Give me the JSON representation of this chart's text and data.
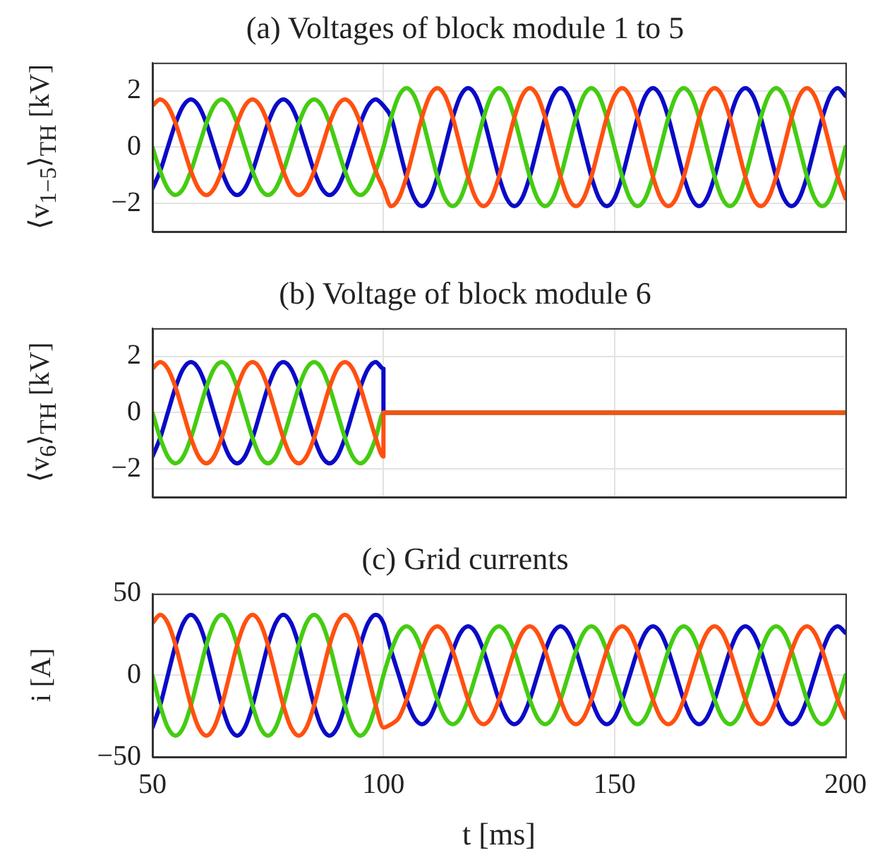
{
  "chart_data": [
    {
      "type": "line",
      "title": "(a) Voltages of block module 1 to 5",
      "ylabel": "⟨v$_{1−5}$⟩$_{TH}$ [kV]",
      "xlim": [
        50,
        200
      ],
      "xticks": [
        50,
        100,
        150,
        200
      ],
      "ylim": [
        -3,
        3
      ],
      "yticks": [
        -2,
        0,
        2
      ],
      "grid": true,
      "legend": false,
      "marker": "none",
      "tick_labels": "y",
      "x": [
        50,
        51.67,
        53.33,
        55,
        56.67,
        58.33,
        60,
        61.67,
        63.33,
        65,
        66.67,
        68.33,
        70,
        71.67,
        73.33,
        75,
        76.67,
        78.33,
        80,
        81.67,
        83.33,
        85,
        86.67,
        88.33,
        90,
        91.67,
        93.33,
        95,
        96.67,
        98.33,
        100,
        101.67,
        103.33,
        105,
        106.67,
        108.33,
        110,
        111.67,
        113.33,
        115,
        116.67,
        118.33,
        120,
        121.67,
        123.33,
        125,
        126.67,
        128.33,
        130,
        131.67,
        133.33,
        135,
        136.67,
        138.33,
        140,
        141.67,
        143.33,
        145,
        146.67,
        148.33,
        150,
        151.67,
        153.33,
        155,
        156.67,
        158.33,
        160,
        161.67,
        163.33,
        165,
        166.67,
        168.33,
        170,
        171.67,
        173.33,
        175,
        176.67,
        178.33,
        180,
        181.67,
        183.33,
        185,
        186.67,
        188.33,
        190,
        191.67,
        193.33,
        195,
        196.67,
        198.33,
        200
      ],
      "series": [
        {
          "color": "#0a0ac8",
          "values": [
            -1.47,
            -0.85,
            0,
            0.85,
            1.47,
            1.7,
            1.47,
            0.85,
            0,
            -0.85,
            -1.47,
            -1.7,
            -1.47,
            -0.85,
            0,
            0.85,
            1.47,
            1.7,
            1.47,
            0.85,
            0,
            -0.85,
            -1.47,
            -1.7,
            -1.47,
            -0.85,
            0,
            0.85,
            1.47,
            1.7,
            1.47,
            1.05,
            0,
            -1.05,
            -1.82,
            -2.1,
            -1.82,
            -1.05,
            0,
            1.05,
            1.82,
            2.1,
            1.82,
            1.05,
            0,
            -1.05,
            -1.82,
            -2.1,
            -1.82,
            -1.05,
            0,
            1.05,
            1.82,
            2.1,
            1.82,
            1.05,
            0,
            -1.05,
            -1.82,
            -2.1,
            -1.82,
            -1.05,
            0,
            1.05,
            1.82,
            2.1,
            1.82,
            1.05,
            0,
            -1.05,
            -1.82,
            -2.1,
            -1.82,
            -1.05,
            0,
            1.05,
            1.82,
            2.1,
            1.82,
            1.05,
            0,
            -1.05,
            -1.82,
            -2.1,
            -1.82,
            -1.05,
            0,
            1.05,
            1.82,
            2.1,
            1.82
          ]
        },
        {
          "color": "#44cc11",
          "values": [
            0,
            -0.85,
            -1.47,
            -1.7,
            -1.47,
            -0.85,
            0,
            0.85,
            1.47,
            1.7,
            1.47,
            0.85,
            0,
            -0.85,
            -1.47,
            -1.7,
            -1.47,
            -0.85,
            0,
            0.85,
            1.47,
            1.7,
            1.47,
            0.85,
            0,
            -0.85,
            -1.47,
            -1.7,
            -1.47,
            -0.85,
            0,
            1.05,
            1.82,
            2.1,
            1.82,
            1.05,
            0,
            -1.05,
            -1.82,
            -2.1,
            -1.82,
            -1.05,
            0,
            1.05,
            1.82,
            2.1,
            1.82,
            1.05,
            0,
            -1.05,
            -1.82,
            -2.1,
            -1.82,
            -1.05,
            0,
            1.05,
            1.82,
            2.1,
            1.82,
            1.05,
            0,
            -1.05,
            -1.82,
            -2.1,
            -1.82,
            -1.05,
            0,
            1.05,
            1.82,
            2.1,
            1.82,
            1.05,
            0,
            -1.05,
            -1.82,
            -2.1,
            -1.82,
            -1.05,
            0,
            1.05,
            1.82,
            2.1,
            1.82,
            1.05,
            0,
            -1.05,
            -1.82,
            -2.1,
            -1.82,
            -1.05,
            0
          ]
        },
        {
          "color": "#ff5010",
          "values": [
            1.47,
            1.7,
            1.47,
            0.85,
            0,
            -0.85,
            -1.47,
            -1.7,
            -1.47,
            -0.85,
            0,
            0.85,
            1.47,
            1.7,
            1.47,
            0.85,
            0,
            -0.85,
            -1.47,
            -1.7,
            -1.47,
            -0.85,
            0,
            0.85,
            1.47,
            1.7,
            1.47,
            0.85,
            0,
            -0.85,
            -1.47,
            -2.1,
            -1.82,
            -1.05,
            0,
            1.05,
            1.82,
            2.1,
            1.82,
            1.05,
            0,
            -1.05,
            -1.82,
            -2.1,
            -1.82,
            -1.05,
            0,
            1.05,
            1.82,
            2.1,
            1.82,
            1.05,
            0,
            -1.05,
            -1.82,
            -2.1,
            -1.82,
            -1.05,
            0,
            1.05,
            1.82,
            2.1,
            1.82,
            1.05,
            0,
            -1.05,
            -1.82,
            -2.1,
            -1.82,
            -1.05,
            0,
            1.05,
            1.82,
            2.1,
            1.82,
            1.05,
            0,
            -1.05,
            -1.82,
            -2.1,
            -1.82,
            -1.05,
            0,
            1.05,
            1.82,
            2.1,
            1.82,
            1.05,
            0,
            -1.05,
            -1.82
          ]
        }
      ]
    },
    {
      "type": "line",
      "title": "(b) Voltage of block module 6",
      "ylabel": "⟨v$_{6}$⟩$_{TH}$ [kV]",
      "xlim": [
        50,
        200
      ],
      "xticks": [
        50,
        100,
        150,
        200
      ],
      "ylim": [
        -3,
        3
      ],
      "yticks": [
        -2,
        0,
        2
      ],
      "grid": true,
      "legend": false,
      "marker": "none",
      "tick_labels": "y",
      "x": [
        50,
        51.67,
        53.33,
        55,
        56.67,
        58.33,
        60,
        61.67,
        63.33,
        65,
        66.67,
        68.33,
        70,
        71.67,
        73.33,
        75,
        76.67,
        78.33,
        80,
        81.67,
        83.33,
        85,
        86.67,
        88.33,
        90,
        91.67,
        93.33,
        95,
        96.67,
        98.33,
        100,
        100,
        200
      ],
      "series": [
        {
          "color": "#0a0ac8",
          "values": [
            -1.56,
            -0.9,
            0,
            0.9,
            1.56,
            1.8,
            1.56,
            0.9,
            0,
            -0.9,
            -1.56,
            -1.8,
            -1.56,
            -0.9,
            0,
            0.9,
            1.56,
            1.8,
            1.56,
            0.9,
            0,
            -0.9,
            -1.56,
            -1.8,
            -1.56,
            -0.9,
            0,
            0.9,
            1.56,
            1.8,
            1.56,
            0,
            0
          ]
        },
        {
          "color": "#44cc11",
          "values": [
            0,
            -0.9,
            -1.56,
            -1.8,
            -1.56,
            -0.9,
            0,
            0.9,
            1.56,
            1.8,
            1.56,
            0.9,
            0,
            -0.9,
            -1.56,
            -1.8,
            -1.56,
            -0.9,
            0,
            0.9,
            1.56,
            1.8,
            1.56,
            0.9,
            0,
            -0.9,
            -1.56,
            -1.8,
            -1.56,
            -0.9,
            0,
            0,
            0
          ]
        },
        {
          "color": "#ff5010",
          "values": [
            1.56,
            1.8,
            1.56,
            0.9,
            0,
            -0.9,
            -1.56,
            -1.8,
            -1.56,
            -0.9,
            0,
            0.9,
            1.56,
            1.8,
            1.56,
            0.9,
            0,
            -0.9,
            -1.56,
            -1.8,
            -1.56,
            -0.9,
            0,
            0.9,
            1.56,
            1.8,
            1.56,
            0.9,
            0,
            -0.9,
            -1.56,
            0,
            0
          ]
        }
      ]
    },
    {
      "type": "line",
      "title": "(c) Grid currents",
      "xlabel": "t [ms]",
      "ylabel": "i [A]",
      "xlim": [
        50,
        200
      ],
      "xticks": [
        50,
        100,
        150,
        200
      ],
      "ylim": [
        -50,
        50
      ],
      "yticks": [
        -50,
        0,
        50
      ],
      "grid": true,
      "legend": false,
      "marker": "none",
      "x": [
        50,
        51.67,
        53.33,
        55,
        56.67,
        58.33,
        60,
        61.67,
        63.33,
        65,
        66.67,
        68.33,
        70,
        71.67,
        73.33,
        75,
        76.67,
        78.33,
        80,
        81.67,
        83.33,
        85,
        86.67,
        88.33,
        90,
        91.67,
        93.33,
        95,
        96.67,
        98.33,
        100,
        101.67,
        103.33,
        105,
        106.67,
        108.33,
        110,
        111.67,
        113.33,
        115,
        116.67,
        118.33,
        120,
        121.67,
        123.33,
        125,
        126.67,
        128.33,
        130,
        131.67,
        133.33,
        135,
        136.67,
        138.33,
        140,
        141.67,
        143.33,
        145,
        146.67,
        148.33,
        150,
        151.67,
        153.33,
        155,
        156.67,
        158.33,
        160,
        161.67,
        163.33,
        165,
        166.67,
        168.33,
        170,
        171.67,
        173.33,
        175,
        176.67,
        178.33,
        180,
        181.67,
        183.33,
        185,
        186.67,
        188.33,
        190,
        191.67,
        193.33,
        195,
        196.67,
        198.33,
        200
      ],
      "series": [
        {
          "color": "#0a0ac8",
          "values": [
            -32,
            -18.5,
            0,
            18.5,
            32,
            37,
            32,
            18.5,
            0,
            -18.5,
            -32,
            -37,
            -32,
            -18.5,
            0,
            18.5,
            32,
            37,
            32,
            18.5,
            0,
            -18.5,
            -32,
            -37,
            -32,
            -18.5,
            0,
            18.5,
            32,
            37,
            32,
            15,
            0,
            -15,
            -26,
            -30,
            -26,
            -15,
            0,
            15,
            26,
            30,
            26,
            15,
            0,
            -15,
            -26,
            -30,
            -26,
            -15,
            0,
            15,
            26,
            30,
            26,
            15,
            0,
            -15,
            -26,
            -30,
            -26,
            -15,
            0,
            15,
            26,
            30,
            26,
            15,
            0,
            -15,
            -26,
            -30,
            -26,
            -15,
            0,
            15,
            26,
            30,
            26,
            15,
            0,
            -15,
            -26,
            -30,
            -26,
            -15,
            0,
            15,
            26,
            30,
            26
          ]
        },
        {
          "color": "#44cc11",
          "values": [
            0,
            -18.5,
            -32,
            -37,
            -32,
            -18.5,
            0,
            18.5,
            32,
            37,
            32,
            18.5,
            0,
            -18.5,
            -32,
            -37,
            -32,
            -18.5,
            0,
            18.5,
            32,
            37,
            32,
            18.5,
            0,
            -18.5,
            -32,
            -37,
            -32,
            -18.5,
            0,
            15,
            26,
            30,
            26,
            15,
            0,
            -15,
            -26,
            -30,
            -26,
            -15,
            0,
            15,
            26,
            30,
            26,
            15,
            0,
            -15,
            -26,
            -30,
            -26,
            -15,
            0,
            15,
            26,
            30,
            26,
            15,
            0,
            -15,
            -26,
            -30,
            -26,
            -15,
            0,
            15,
            26,
            30,
            26,
            15,
            0,
            -15,
            -26,
            -30,
            -26,
            -15,
            0,
            15,
            26,
            30,
            26,
            15,
            0,
            -15,
            -26,
            -30,
            -26,
            -15,
            0
          ]
        },
        {
          "color": "#ff5010",
          "values": [
            32,
            37,
            32,
            18.5,
            0,
            -18.5,
            -32,
            -37,
            -32,
            -18.5,
            0,
            18.5,
            32,
            37,
            32,
            18.5,
            0,
            -18.5,
            -32,
            -37,
            -32,
            -18.5,
            0,
            18.5,
            32,
            37,
            32,
            18.5,
            0,
            -18.5,
            -32,
            -30,
            -26,
            -15,
            0,
            15,
            26,
            30,
            26,
            15,
            0,
            -15,
            -26,
            -30,
            -26,
            -15,
            0,
            15,
            26,
            30,
            26,
            15,
            0,
            -15,
            -26,
            -30,
            -26,
            -15,
            0,
            15,
            26,
            30,
            26,
            15,
            0,
            -15,
            -26,
            -30,
            -26,
            -15,
            0,
            15,
            26,
            30,
            26,
            15,
            0,
            -15,
            -26,
            -30,
            -26,
            -15,
            0,
            15,
            26,
            30,
            26,
            15,
            0,
            -15,
            -26
          ]
        }
      ]
    }
  ]
}
